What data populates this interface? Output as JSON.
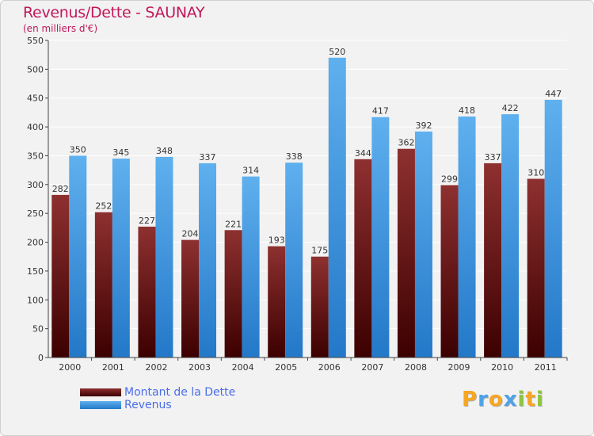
{
  "chart_data": {
    "type": "bar",
    "title": "Revenus/Dette - SAUNAY",
    "subtitle": "(en milliers d'€)",
    "categories": [
      "2000",
      "2001",
      "2002",
      "2003",
      "2004",
      "2005",
      "2006",
      "2007",
      "2008",
      "2009",
      "2010",
      "2011"
    ],
    "series": [
      {
        "name": "Montant de la Dette",
        "color": "#7a1e1e",
        "values": [
          282,
          252,
          227,
          204,
          221,
          193,
          175,
          344,
          362,
          299,
          337,
          310
        ]
      },
      {
        "name": "Revenus",
        "color": "#4da3e8",
        "values": [
          350,
          345,
          348,
          337,
          314,
          338,
          520,
          417,
          392,
          418,
          422,
          447
        ]
      }
    ],
    "ylim": [
      0,
      550
    ],
    "yticks": [
      0,
      50,
      100,
      150,
      200,
      250,
      300,
      350,
      400,
      450,
      500,
      550
    ],
    "grid": true,
    "legend_position": "bottom-left"
  },
  "logo": {
    "letters": [
      {
        "ch": "P",
        "color": "#f5a623"
      },
      {
        "ch": "r",
        "color": "#4da3e8"
      },
      {
        "ch": "o",
        "color": "#f5a623"
      },
      {
        "ch": "x",
        "color": "#4da3e8"
      },
      {
        "ch": "i",
        "color": "#8cc63f"
      },
      {
        "ch": "t",
        "color": "#f5a623"
      },
      {
        "ch": "i",
        "color": "#8cc63f"
      }
    ]
  }
}
